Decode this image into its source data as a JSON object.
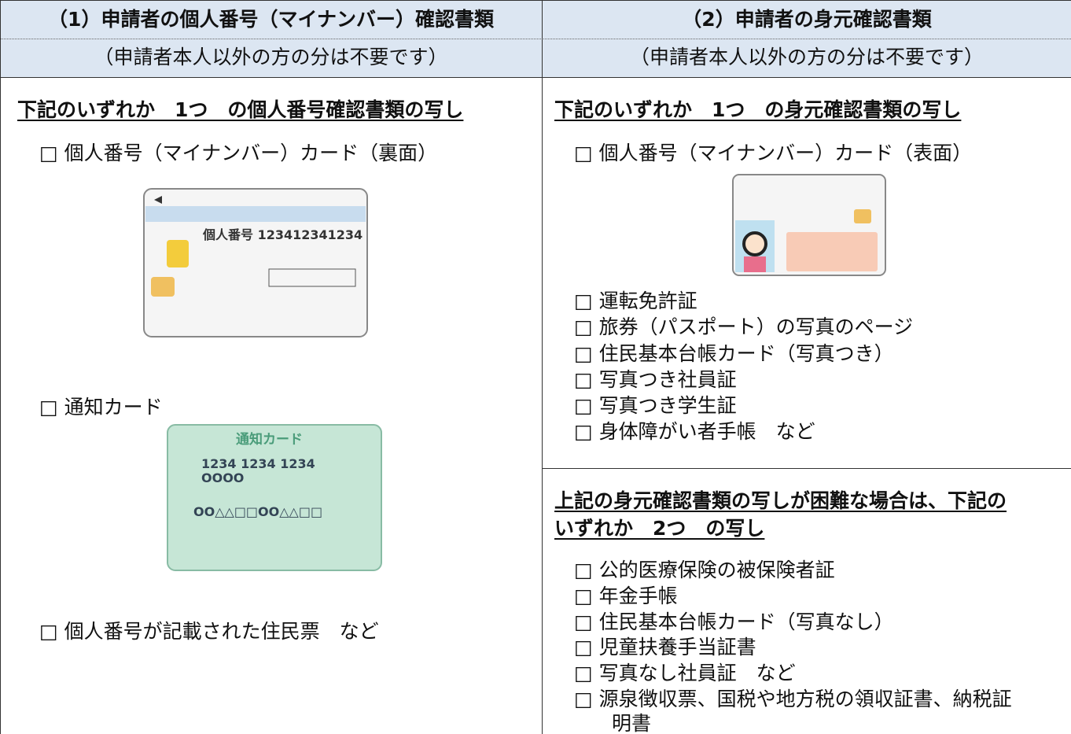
{
  "columns": [
    {
      "header": "（1）申請者の個人番号（マイナンバー）確認書類",
      "note": "（申請者本人以外の方の分は不要です）"
    },
    {
      "header": "（2）申請者の身元確認書類",
      "note": "（申請者本人以外の方の分は不要です）"
    }
  ],
  "left": {
    "heading": "下記のいずれか　1つ　の個人番号確認書類の写し",
    "items": [
      "□ 個人番号（マイナンバー）カード（裏面）",
      "□ 通知カード",
      "□ 個人番号が記載された住民票　など"
    ]
  },
  "cards": {
    "back_number": "個人番号 123412341234",
    "notice_title": "通知カード",
    "notice_number": "1234 1234 1234",
    "notice_name": "OOOO",
    "notice_address": "OO△△□□OO△△□□"
  },
  "right": {
    "heading": "下記のいずれか　1つ　の身元確認書類の写し",
    "items": [
      "□ 個人番号（マイナンバー）カード（表面）",
      "□ 運転免許証",
      "□ 旅券（パスポート）の写真のページ",
      "□ 住民基本台帳カード（写真つき）",
      "□ 写真つき社員証",
      "□ 写真つき学生証",
      "□ 身体障がい者手帳　など"
    ],
    "alt_heading": [
      "上記の身元確認書類の写しが困難な場合は、下記の",
      "いずれか　2つ　の写し"
    ],
    "alt_items": [
      "□ 公的医療保険の被保険者証",
      "□ 年金手帳",
      "□ 住民基本台帳カード（写真なし）",
      "□ 児童扶養手当証書",
      "□ 写真なし社員証　など",
      "□ 源泉徴収票、国税や地方税の領収証書、納税証",
      "明書"
    ]
  }
}
